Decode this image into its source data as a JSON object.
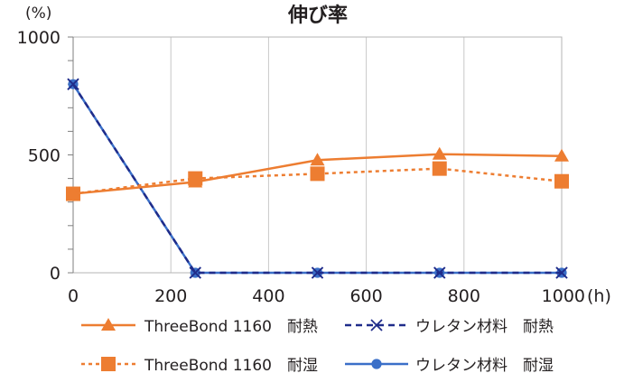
{
  "chart_data": {
    "type": "line",
    "title": "伸び率",
    "ylabel": "(%)",
    "xlabel": "(h)",
    "x": [
      0,
      250,
      500,
      750,
      1000
    ],
    "xlim": [
      0,
      1000
    ],
    "ylim": [
      0,
      1000
    ],
    "xticks": [
      0,
      200,
      400,
      600,
      800,
      1000
    ],
    "yticks": [
      0,
      500,
      1000
    ],
    "x_tick_labels": [
      "0",
      "200",
      "400",
      "600",
      "800",
      "1000"
    ],
    "y_tick_labels": [
      "0",
      "500",
      "1000"
    ],
    "minor_y_step": 100,
    "grid": "vertical gridlines at x ticks, plot area border",
    "legend_placement": "bottom, two columns",
    "series": [
      {
        "name": "ThreeBond 1160　耐熱",
        "values": [
          335,
          385,
          478,
          503,
          495
        ],
        "color": "#ed7d31",
        "line_style": "solid",
        "marker": "triangle"
      },
      {
        "name": "ThreeBond 1160　耐湿",
        "values": [
          335,
          400,
          420,
          442,
          388
        ],
        "color": "#ed7d31",
        "line_style": "dotted",
        "marker": "square"
      },
      {
        "name": "ウレタン材料　耐熱",
        "values": [
          800,
          0,
          0,
          0,
          0
        ],
        "color": "#1f2c8a",
        "line_style": "dashed",
        "marker": "x"
      },
      {
        "name": "ウレタン材料　耐湿",
        "values": [
          800,
          0,
          0,
          0,
          0
        ],
        "color": "#3a6fc8",
        "line_style": "solid",
        "marker": "circle"
      }
    ]
  }
}
